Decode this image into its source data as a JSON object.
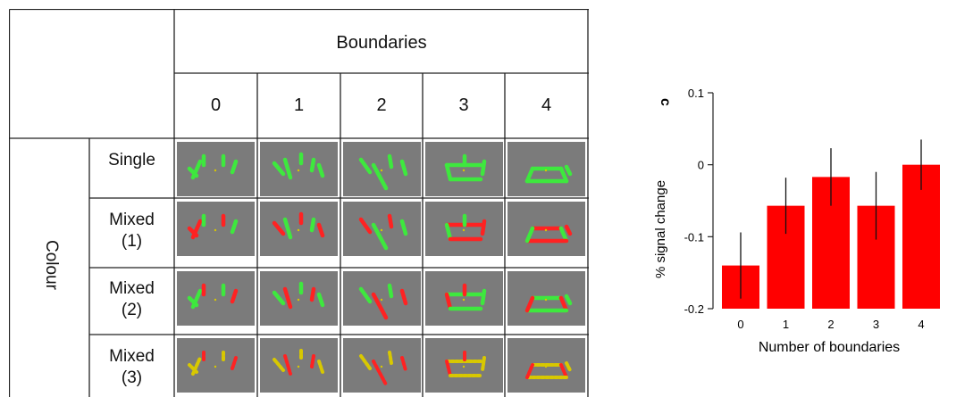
{
  "table": {
    "column_group_header": "Boundaries",
    "column_headers": [
      "0",
      "1",
      "2",
      "3",
      "4"
    ],
    "row_group_header": "Colour",
    "row_headers": [
      "Single",
      "Mixed\n(1)",
      "Mixed\n(2)",
      "Mixed\n(3)"
    ]
  },
  "panel_label": "c",
  "chart_data": {
    "type": "bar",
    "categories": [
      "0",
      "1",
      "2",
      "3",
      "4"
    ],
    "values": [
      -0.14,
      -0.057,
      -0.017,
      -0.057,
      0.0
    ],
    "error_bars": [
      0.046,
      0.039,
      0.04,
      0.047,
      0.035
    ],
    "bar_color": "#ff0000",
    "xlabel": "Number of boundaries",
    "ylabel": "% signal change",
    "ylim": [
      -0.2,
      0.1
    ],
    "yticks": [
      "0.1",
      "0",
      "-0.1",
      "-0.2"
    ],
    "grid": false
  },
  "colors": {
    "stimulus_background": "#7b7b7b",
    "green": "#3ee83e",
    "red": "#ff2222",
    "yellow": "#d8c800"
  }
}
